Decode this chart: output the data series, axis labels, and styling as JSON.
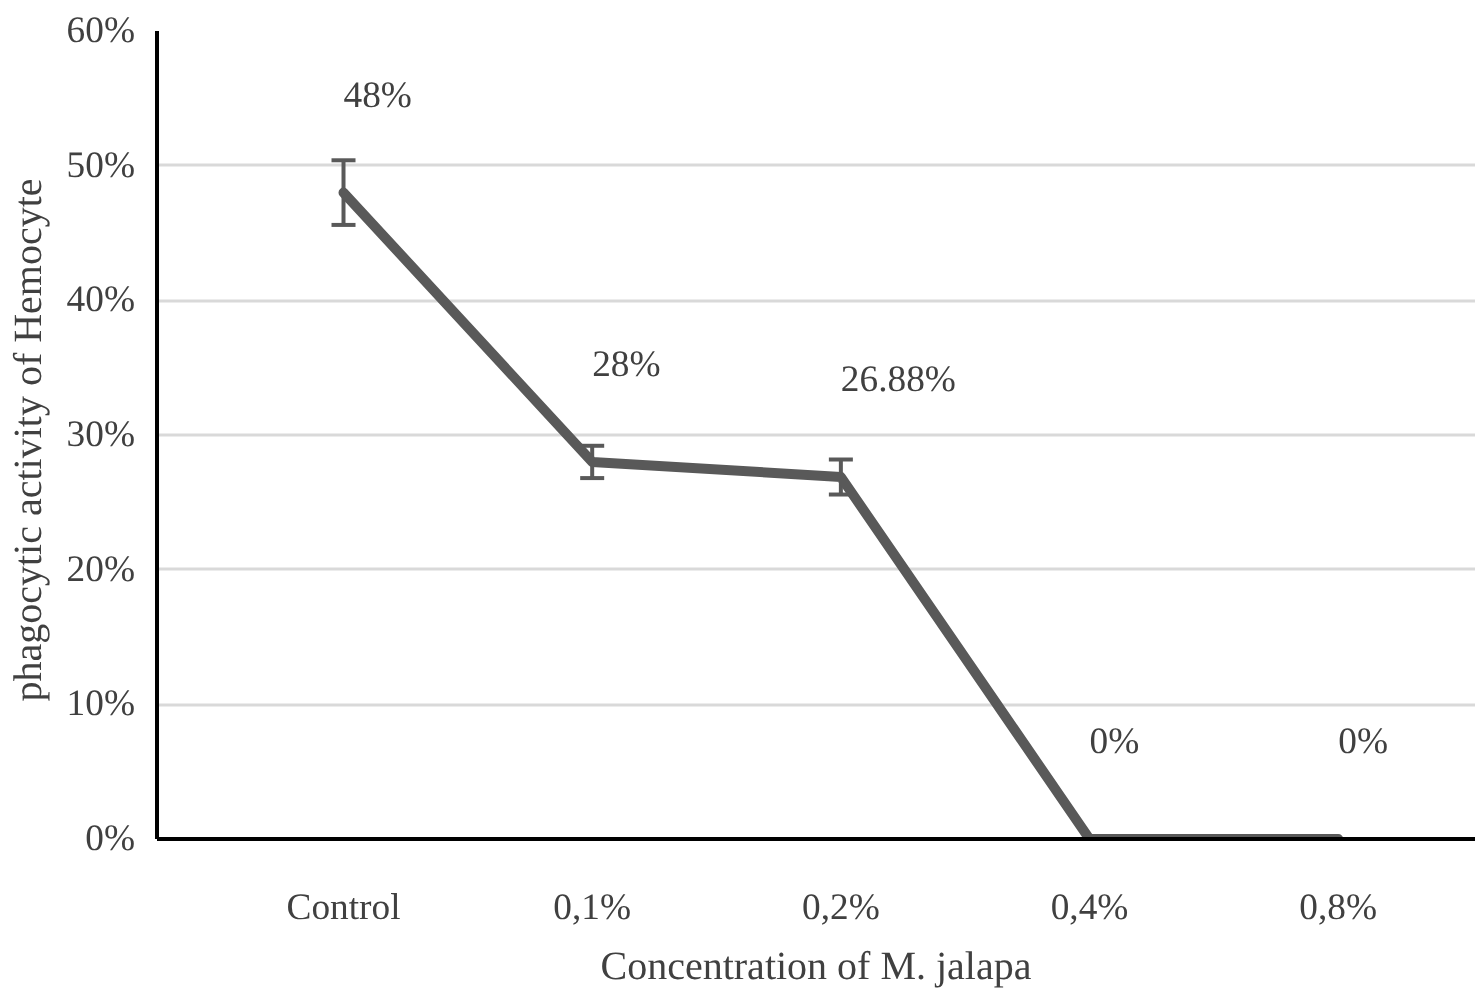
{
  "chart_data": {
    "type": "line",
    "xlabel": "Concentration of M. jalapa",
    "ylabel": "phagocytic activity  of Hemocyte",
    "categories": [
      "Control",
      "0,1%",
      "0,2%",
      "0,4%",
      "0,8%"
    ],
    "series": [
      {
        "color": "#595959",
        "values": [
          48,
          28,
          26.88,
          0,
          0
        ],
        "errors": [
          2.4,
          1.2,
          1.3,
          null,
          null
        ],
        "value_labels": [
          "48%",
          "28%",
          "26.88%",
          "0%",
          "0%"
        ]
      }
    ],
    "ylim": [
      0,
      60
    ],
    "yticks": [
      {
        "value": 0,
        "label": "0%"
      },
      {
        "value": 10,
        "label": "10%"
      },
      {
        "value": 20,
        "label": "20%"
      },
      {
        "value": 30,
        "label": "30%"
      },
      {
        "value": 40,
        "label": "40%"
      },
      {
        "value": 50,
        "label": "50%"
      },
      {
        "value": 60,
        "label": "60%"
      }
    ],
    "grid": "y",
    "marker": "none",
    "line_style": "solid"
  }
}
